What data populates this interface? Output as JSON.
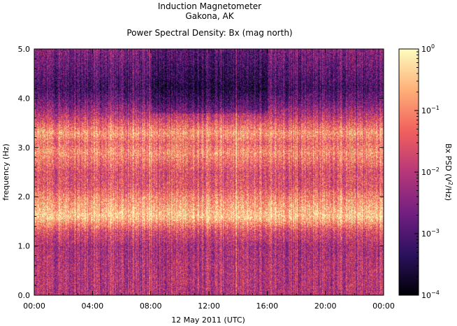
{
  "chart_data": {
    "type": "heatmap",
    "title_lines": [
      "Induction Magnetometer",
      "Gakona, AK"
    ],
    "subtitle": "Power Spectral Density: Bx (mag north)",
    "xlabel": "12 May 2011 (UTC)",
    "ylabel": "frequency (Hz)",
    "x_ticks": [
      "00:00",
      "04:00",
      "08:00",
      "12:00",
      "16:00",
      "20:00",
      "00:00"
    ],
    "xlim_hours": [
      0,
      24
    ],
    "y_ticks": [
      "0.0",
      "1.0",
      "2.0",
      "3.0",
      "4.0",
      "5.0"
    ],
    "ylim": [
      0,
      5
    ],
    "colorbar": {
      "label_prefix": "Bx PSD (",
      "label_base": "V",
      "label_sup": "2",
      "label_suffix": "/Hz)",
      "scale": "log",
      "range": [
        0.0001,
        1
      ],
      "ticks": [
        {
          "value": 1,
          "base": "10",
          "exp": "0"
        },
        {
          "value": 0.1,
          "base": "10",
          "exp": "−1"
        },
        {
          "value": 0.01,
          "base": "10",
          "exp": "−2"
        },
        {
          "value": 0.001,
          "base": "10",
          "exp": "−3"
        },
        {
          "value": 0.0001,
          "base": "10",
          "exp": "−4"
        }
      ],
      "colormap": [
        "#000004",
        "#2c115f",
        "#721f81",
        "#b73779",
        "#f1605d",
        "#feb078",
        "#fcfdbf"
      ]
    },
    "frequency_profile_hz": [
      0.0,
      0.5,
      1.0,
      1.3,
      1.6,
      1.8,
      2.0,
      2.2,
      2.5,
      2.9,
      3.1,
      3.3,
      3.6,
      3.9,
      4.2,
      4.6,
      5.0
    ],
    "frequency_profile_log10_psd": [
      -2.0,
      -2.0,
      -2.1,
      -1.6,
      -0.4,
      -0.7,
      -1.0,
      -1.5,
      -1.6,
      -0.9,
      -1.3,
      -0.8,
      -1.8,
      -2.6,
      -3.1,
      -2.8,
      -2.5
    ],
    "notes_bands": [
      {
        "name": "",
        "freq_hz": 1.6,
        "log10_psd": -0.4
      },
      {
        "name": "",
        "freq_hz": 2.9,
        "log10_psd": -0.9
      },
      {
        "name": "",
        "freq_hz": 3.3,
        "log10_psd": -0.8
      }
    ]
  }
}
